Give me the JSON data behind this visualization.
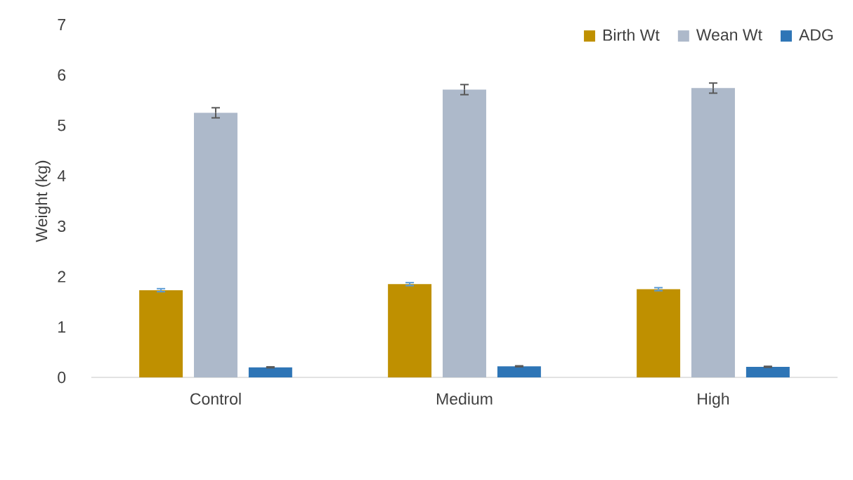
{
  "chart_data": {
    "type": "bar",
    "ylabel": "Weight (kg)",
    "categories": [
      "Control",
      "Medium",
      "High"
    ],
    "series": [
      {
        "name": "Birth Wt",
        "color": "#bf9000",
        "values": [
          1.73,
          1.85,
          1.75
        ],
        "errors": [
          0.03,
          0.03,
          0.03
        ]
      },
      {
        "name": "Wean Wt",
        "color": "#adb9ca",
        "values": [
          5.25,
          5.71,
          5.74
        ],
        "errors": [
          0.1,
          0.1,
          0.1
        ]
      },
      {
        "name": "ADG",
        "color": "#2e75b6",
        "values": [
          0.2,
          0.22,
          0.21
        ],
        "errors": [
          0.01,
          0.01,
          0.01
        ]
      }
    ],
    "ylim": [
      0,
      7
    ],
    "yticks": [
      0,
      1,
      2,
      3,
      4,
      5,
      6,
      7
    ],
    "grid": false,
    "legend": "top right"
  }
}
